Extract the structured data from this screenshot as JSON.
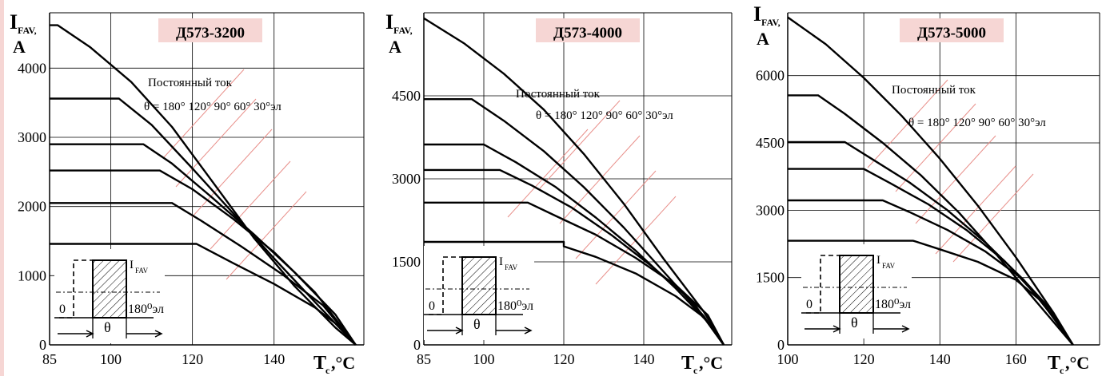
{
  "page": {
    "edge_color": "#f6d6d4"
  },
  "chart_data": [
    {
      "type": "line",
      "title": "Д573-3200",
      "ylabel_main": "I",
      "ylabel_sub": "FAV,",
      "ylabel_unit": "A",
      "xlabel_main": "T",
      "xlabel_sub": "c",
      "xlabel_unit": ",°C",
      "xlim": [
        85,
        162
      ],
      "ylim": [
        0,
        4800
      ],
      "xticks": [
        85,
        100,
        120,
        140
      ],
      "xtick_labels": [
        "85",
        "100",
        "120",
        "140"
      ],
      "yticks": [
        0,
        1000,
        2000,
        3000,
        4000
      ],
      "ytick_labels": [
        "0",
        "1000",
        "2000",
        "3000",
        "4000"
      ],
      "dc_label": "Постоянный ток",
      "theta_label": "θ = 180° 120° 90° 60° 30°эл",
      "series": [
        {
          "values": [
            [
              85,
              4620
            ],
            [
              87,
              4620
            ],
            [
              95,
              4300
            ],
            [
              105,
              3800
            ],
            [
              115,
              3150
            ],
            [
              125,
              2350
            ],
            [
              135,
              1550
            ],
            [
              145,
              850
            ],
            [
              155,
              250
            ],
            [
              160,
              0
            ]
          ]
        },
        {
          "values": [
            [
              85,
              3560
            ],
            [
              102,
              3560
            ],
            [
              110,
              3180
            ],
            [
              120,
              2550
            ],
            [
              130,
              1900
            ],
            [
              140,
              1250
            ],
            [
              150,
              620
            ],
            [
              160,
              0
            ]
          ]
        },
        {
          "values": [
            [
              85,
              2900
            ],
            [
              108,
              2900
            ],
            [
              115,
              2620
            ],
            [
              125,
              2120
            ],
            [
              135,
              1600
            ],
            [
              145,
              1050
            ],
            [
              155,
              440
            ],
            [
              160,
              0
            ]
          ]
        },
        {
          "values": [
            [
              85,
              2520
            ],
            [
              112,
              2520
            ],
            [
              120,
              2250
            ],
            [
              130,
              1820
            ],
            [
              140,
              1340
            ],
            [
              150,
              760
            ],
            [
              160,
              0
            ]
          ]
        },
        {
          "values": [
            [
              85,
              2050
            ],
            [
              115,
              2050
            ],
            [
              122,
              1800
            ],
            [
              132,
              1420
            ],
            [
              142,
              1020
            ],
            [
              152,
              570
            ],
            [
              160,
              0
            ]
          ]
        },
        {
          "values": [
            [
              85,
              1460
            ],
            [
              121,
              1460
            ],
            [
              130,
              1180
            ],
            [
              140,
              880
            ],
            [
              150,
              540
            ],
            [
              157,
              220
            ],
            [
              160,
              0
            ]
          ]
        }
      ],
      "inset": {
        "label_i": "I",
        "label_i_sub": "FAV",
        "label_zero": "0",
        "label_angle": "180⁰эл",
        "label_theta": "θ"
      }
    },
    {
      "type": "line",
      "title": "Д573-4000",
      "ylabel_main": "I",
      "ylabel_sub": "FAV,",
      "ylabel_unit": "A",
      "xlabel_main": "T",
      "xlabel_sub": "c",
      "xlabel_unit": ",°C",
      "xlim": [
        85,
        162
      ],
      "ylim": [
        0,
        6000
      ],
      "xticks": [
        85,
        100,
        120,
        140
      ],
      "xtick_labels": [
        "85",
        "100",
        "120",
        "140"
      ],
      "yticks": [
        0,
        1500,
        3000,
        4500
      ],
      "ytick_labels": [
        "0",
        "1500",
        "3000",
        "4500"
      ],
      "dc_label": "Постоянный ток",
      "theta_label": "θ = 180° 120° 90° 60° 30°эл",
      "series": [
        {
          "values": [
            [
              85,
              5900
            ],
            [
              95,
              5450
            ],
            [
              105,
              4900
            ],
            [
              115,
              4250
            ],
            [
              125,
              3450
            ],
            [
              135,
              2550
            ],
            [
              145,
              1550
            ],
            [
              155,
              600
            ],
            [
              160,
              0
            ]
          ]
        },
        {
          "values": [
            [
              85,
              4440
            ],
            [
              97,
              4440
            ],
            [
              105,
              4050
            ],
            [
              115,
              3500
            ],
            [
              125,
              2850
            ],
            [
              135,
              2120
            ],
            [
              145,
              1320
            ],
            [
              155,
              520
            ],
            [
              160,
              0
            ]
          ]
        },
        {
          "values": [
            [
              85,
              3620
            ],
            [
              100,
              3620
            ],
            [
              108,
              3300
            ],
            [
              118,
              2850
            ],
            [
              128,
              2300
            ],
            [
              138,
              1700
            ],
            [
              148,
              1020
            ],
            [
              158,
              260
            ],
            [
              160,
              0
            ]
          ]
        },
        {
          "values": [
            [
              85,
              3160
            ],
            [
              104,
              3160
            ],
            [
              112,
              2880
            ],
            [
              122,
              2480
            ],
            [
              132,
              1980
            ],
            [
              142,
              1420
            ],
            [
              152,
              800
            ],
            [
              160,
              0
            ]
          ]
        },
        {
          "values": [
            [
              85,
              2570
            ],
            [
              111,
              2570
            ],
            [
              118,
              2330
            ],
            [
              128,
              1990
            ],
            [
              138,
              1570
            ],
            [
              148,
              1080
            ],
            [
              156,
              540
            ],
            [
              160,
              0
            ]
          ]
        },
        {
          "values": [
            [
              85,
              1860
            ],
            [
              120,
              1860
            ],
            [
              120,
              1780
            ],
            [
              128,
              1590
            ],
            [
              138,
              1290
            ],
            [
              148,
              880
            ],
            [
              155,
              500
            ],
            [
              160,
              0
            ]
          ]
        }
      ],
      "inset": {
        "label_i": "I",
        "label_i_sub": "FAV",
        "label_zero": "0",
        "label_angle": "180⁰эл",
        "label_theta": "θ"
      }
    },
    {
      "type": "line",
      "title": "Д573-5000",
      "ylabel_main": "I",
      "ylabel_sub": "FAV,",
      "ylabel_unit": "A",
      "xlabel_main": "T",
      "xlabel_sub": "c",
      "xlabel_unit": ",°C",
      "xlim": [
        100,
        182
      ],
      "ylim": [
        0,
        7400
      ],
      "xticks": [
        100,
        120,
        140,
        160
      ],
      "xtick_labels": [
        "100",
        "120",
        "140",
        "160"
      ],
      "yticks": [
        0,
        1500,
        3000,
        4500,
        6000
      ],
      "ytick_labels": [
        "0",
        "1500",
        "3000",
        "4500",
        "6000"
      ],
      "dc_label": "Постоянный ток",
      "theta_label": "θ = 180° 120° 90° 60° 30°эл",
      "series": [
        {
          "values": [
            [
              100,
              7300
            ],
            [
              110,
              6700
            ],
            [
              120,
              5950
            ],
            [
              130,
              5100
            ],
            [
              140,
              4150
            ],
            [
              150,
              3100
            ],
            [
              160,
              1950
            ],
            [
              170,
              700
            ],
            [
              175,
              0
            ]
          ]
        },
        {
          "values": [
            [
              100,
              5560
            ],
            [
              108,
              5560
            ],
            [
              115,
              5150
            ],
            [
              125,
              4500
            ],
            [
              135,
              3780
            ],
            [
              145,
              2950
            ],
            [
              155,
              2000
            ],
            [
              165,
              1000
            ],
            [
              175,
              0
            ]
          ]
        },
        {
          "values": [
            [
              100,
              4520
            ],
            [
              115,
              4520
            ],
            [
              122,
              4150
            ],
            [
              132,
              3620
            ],
            [
              142,
              3000
            ],
            [
              152,
              2280
            ],
            [
              162,
              1450
            ],
            [
              170,
              600
            ],
            [
              175,
              0
            ]
          ]
        },
        {
          "values": [
            [
              100,
              3920
            ],
            [
              120,
              3920
            ],
            [
              127,
              3600
            ],
            [
              137,
              3130
            ],
            [
              147,
              2560
            ],
            [
              157,
              1870
            ],
            [
              166,
              1050
            ],
            [
              175,
              0
            ]
          ]
        },
        {
          "values": [
            [
              100,
              3220
            ],
            [
              125,
              3220
            ],
            [
              132,
              2960
            ],
            [
              142,
              2560
            ],
            [
              152,
              2080
            ],
            [
              162,
              1450
            ],
            [
              169,
              800
            ],
            [
              175,
              0
            ]
          ]
        },
        {
          "values": [
            [
              100,
              2320
            ],
            [
              133,
              2320
            ],
            [
              140,
              2130
            ],
            [
              150,
              1850
            ],
            [
              160,
              1450
            ],
            [
              167,
              950
            ],
            [
              172,
              400
            ],
            [
              175,
              0
            ]
          ]
        }
      ],
      "inset": {
        "label_i": "I",
        "label_i_sub": "FAV",
        "label_zero": "0",
        "label_angle": "180⁰эл",
        "label_theta": "θ"
      }
    }
  ]
}
